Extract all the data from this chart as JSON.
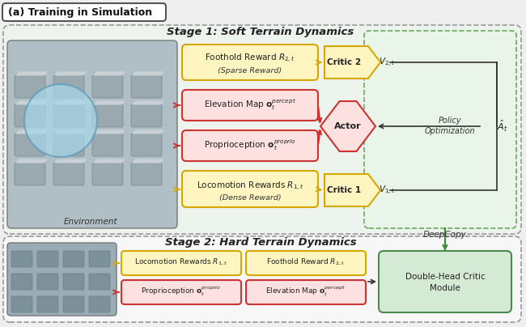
{
  "title_panel": "(a) Training in Simulation",
  "stage1_title": "Stage 1: Soft Terrain Dynamics",
  "stage2_title": "Stage 2: Hard Terrain Dynamics",
  "bg_color": "#efefef",
  "stage1_bg": "#edf4ed",
  "stage2_bg": "#f7f7f7",
  "yellow_box_fill": "#fef5c0",
  "yellow_box_edge": "#d4a800",
  "pink_box_fill": "#fde0e0",
  "pink_box_edge": "#cc3333",
  "green_panel_fill": "#e8f5e8",
  "green_panel_edge": "#6aaa5a",
  "green_box_fill": "#d5ead5",
  "green_box_edge": "#4a8a4a",
  "actor_fill": "#fde0e0",
  "actor_edge": "#cc3333",
  "critic_fill": "#fef5c0",
  "critic_edge": "#d4a800",
  "arrow_yellow": "#d4a800",
  "arrow_red": "#cc3333",
  "arrow_dark": "#333333",
  "arrow_green": "#3a8a3a",
  "text_dark": "#222222",
  "img1_fill": "#c0c8d0",
  "img2_fill": "#b8c0c8"
}
